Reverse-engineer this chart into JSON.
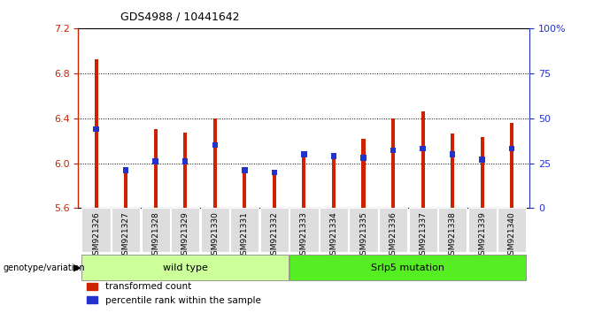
{
  "title": "GDS4988 / 10441642",
  "samples": [
    "GSM921326",
    "GSM921327",
    "GSM921328",
    "GSM921329",
    "GSM921330",
    "GSM921331",
    "GSM921332",
    "GSM921333",
    "GSM921334",
    "GSM921335",
    "GSM921336",
    "GSM921337",
    "GSM921338",
    "GSM921339",
    "GSM921340"
  ],
  "red_values": [
    6.92,
    5.93,
    6.3,
    6.27,
    6.4,
    5.93,
    5.93,
    6.07,
    6.08,
    6.22,
    6.4,
    6.46,
    6.26,
    6.23,
    6.36
  ],
  "blue_pct": [
    44,
    21,
    26,
    26,
    35,
    21,
    20,
    30,
    29,
    28,
    32,
    33,
    30,
    27,
    33
  ],
  "y_min": 5.6,
  "y_max": 7.2,
  "y_ticks": [
    5.6,
    6.0,
    6.4,
    6.8,
    7.2
  ],
  "right_y_ticks": [
    0,
    25,
    50,
    75,
    100
  ],
  "right_y_labels": [
    "0",
    "25",
    "50",
    "75",
    "100%"
  ],
  "dotted_lines": [
    6.0,
    6.4,
    6.8
  ],
  "wild_type_count": 7,
  "wild_type_label": "wild type",
  "mutation_label": "Srlp5 mutation",
  "genotype_label": "genotype/variation",
  "legend_red": "transformed count",
  "legend_blue": "percentile rank within the sample",
  "bar_color_red": "#CC2200",
  "bar_color_blue": "#2233CC",
  "bar_width": 0.12,
  "bg_color": "#FFFFFF",
  "left_tick_color": "#CC2200",
  "right_tick_color": "#2233CC",
  "group_box_light_green": "#CCFF99",
  "group_box_dark_green": "#55EE22",
  "label_gray": "#DDDDDD"
}
